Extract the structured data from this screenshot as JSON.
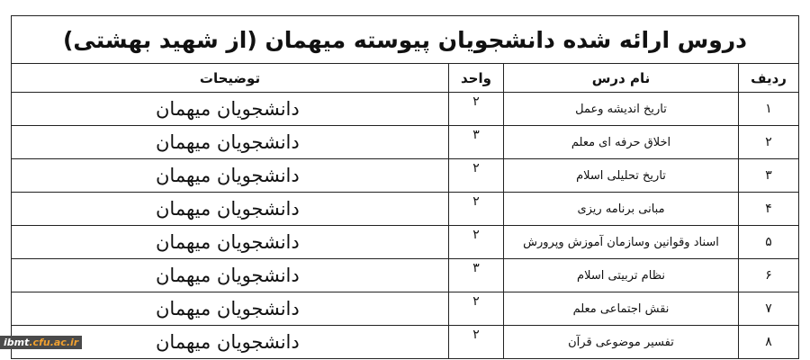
{
  "title": "دروس ارائه شده دانشجویان پیوسته میهمان (از شهید بهشتی)",
  "headers": {
    "index": "ردیف",
    "course": "نام درس",
    "units": "واحد",
    "notes": "توضیحات"
  },
  "rows": [
    {
      "index": "۱",
      "course": "تاریخ اندیشه وعمل",
      "units": "۲",
      "notes": "دانشجویان میهمان"
    },
    {
      "index": "۲",
      "course": "اخلاق حرفه ای معلم",
      "units": "۳",
      "notes": "دانشجویان میهمان"
    },
    {
      "index": "۳",
      "course": "تاریخ تحلیلی اسلام",
      "units": "۲",
      "notes": "دانشجویان میهمان"
    },
    {
      "index": "۴",
      "course": "مبانی برنامه ریزی",
      "units": "۲",
      "notes": "دانشجویان میهمان"
    },
    {
      "index": "۵",
      "course": "اسناد وقوانین وسازمان آموزش وپرورش",
      "units": "۲",
      "notes": "دانشجویان میهمان"
    },
    {
      "index": "۶",
      "course": "نظام تربیتی اسلام",
      "units": "۳",
      "notes": "دانشجویان میهمان"
    },
    {
      "index": "۷",
      "course": "نقش اجتماعی معلم",
      "units": "۲",
      "notes": "دانشجویان میهمان"
    },
    {
      "index": "۸",
      "course": "تفسیر موضوعی قرآن",
      "units": "۲",
      "notes": "دانشجویان میهمان"
    }
  ],
  "watermark": {
    "part1": "ibmt",
    "part2": ".cfu.ac.ir"
  }
}
